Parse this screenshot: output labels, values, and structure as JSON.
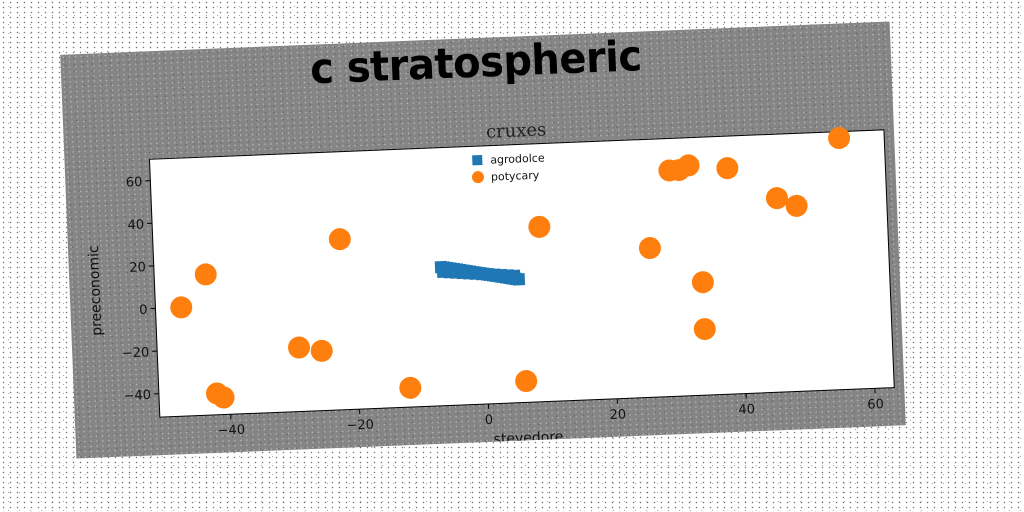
{
  "headline": "c stratospheric",
  "chart_data": {
    "type": "scatter",
    "title": "cruxes",
    "xlabel": "stevedore",
    "ylabel": "preeconomic",
    "xlim": [
      -51,
      63
    ],
    "ylim": [
      -51,
      70
    ],
    "xticks": [
      -40,
      -20,
      0,
      20,
      40,
      60
    ],
    "yticks": [
      -40,
      -20,
      0,
      20,
      40,
      60
    ],
    "xtick_labels": [
      "−40",
      "−20",
      "0",
      "20",
      "40",
      "60"
    ],
    "ytick_labels": [
      "−40",
      "−20",
      "0",
      "20",
      "40",
      "60"
    ],
    "grid": false,
    "legend_position": "top-center",
    "series": [
      {
        "name": "agrodolce",
        "marker": "square",
        "color": "#1f77b4",
        "x": [
          -6.5,
          -6.0,
          -5.5,
          -5.0,
          -4.5,
          -4.0,
          -3.5,
          -3.0,
          -2.5,
          -2.0,
          -1.5,
          -1.0,
          -0.5,
          0.0,
          0.5,
          1.0,
          1.5,
          2.0,
          2.5,
          3.0,
          3.5,
          4.0,
          4.5,
          5.0,
          5.5,
          -6.2,
          -5.2,
          -4.2,
          -3.2,
          -2.2,
          -1.2,
          -0.2,
          0.8,
          1.8,
          2.8,
          3.8,
          4.8
        ],
        "y": [
          14.0,
          13.7,
          13.4,
          13.1,
          12.8,
          12.5,
          12.2,
          11.9,
          11.6,
          11.3,
          11.0,
          10.7,
          10.4,
          10.1,
          9.8,
          9.5,
          9.2,
          8.9,
          8.6,
          8.3,
          8.0,
          7.7,
          7.4,
          7.1,
          6.8,
          11.8,
          11.5,
          11.2,
          10.9,
          10.6,
          10.3,
          10.0,
          9.7,
          9.4,
          9.1,
          8.8,
          8.5
        ]
      },
      {
        "name": "potycary",
        "marker": "circle",
        "color": "#ff7f0e",
        "x": [
          -47,
          -43,
          -42,
          -41,
          -29,
          -25.5,
          -22,
          -12,
          6,
          9,
          26,
          29.5,
          32.5,
          31,
          34,
          34,
          38.5,
          46,
          49,
          56
        ],
        "y": [
          0,
          15,
          -41,
          -43,
          -21,
          -23,
          29,
          -42,
          -41,
          31,
          19,
          55,
          57,
          55,
          -20,
          2,
          55,
          40,
          36,
          67
        ]
      }
    ]
  }
}
